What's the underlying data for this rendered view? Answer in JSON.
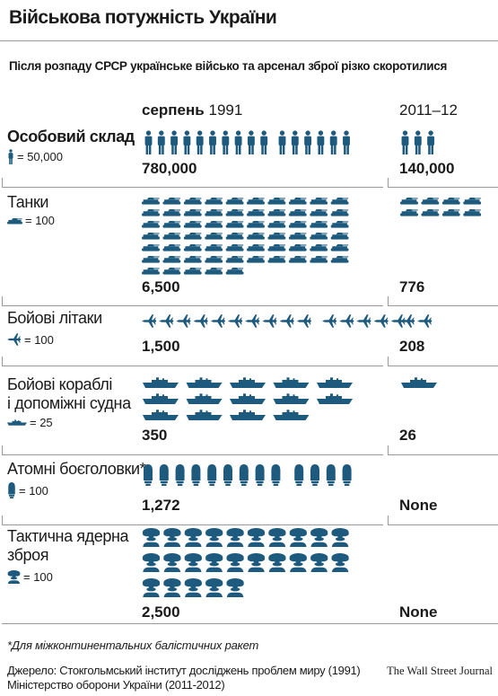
{
  "title": "Військова потужність України",
  "subtitle": "Після розпаду СРСР українське військо та арсенал зброї різко скоротилися",
  "columns": {
    "left_prefix": "серпень",
    "left_year": "1991",
    "right": "2011–12"
  },
  "colors": {
    "icon": "#1d5a7e",
    "rule": "#999999"
  },
  "chart_data": {
    "type": "pictogram",
    "categories": [
      {
        "name": "Особовий склад",
        "unit_icon": "soldier-icon",
        "unit_value": "= 50,000",
        "value_1991": "780,000",
        "value_2011": "140,000"
      },
      {
        "name": "Танки",
        "unit_icon": "tank-icon",
        "unit_value": "= 100",
        "value_1991": "6,500",
        "value_2011": "776"
      },
      {
        "name": "Бойові літаки",
        "unit_icon": "plane-icon",
        "unit_value": "= 100",
        "value_1991": "1,500",
        "value_2011": "208"
      },
      {
        "name": "Бойові кораблі і допоміжні судна",
        "name_line1": "Бойові кораблі",
        "name_line2": "і допоміжні судна",
        "unit_icon": "ship-icon",
        "unit_value": "= 25",
        "value_1991": "350",
        "value_2011": "26"
      },
      {
        "name": "Атомні боєголовки*",
        "unit_icon": "warhead-icon",
        "unit_value": "= 100",
        "value_1991": "1,272",
        "value_2011": "None"
      },
      {
        "name": "Тактична ядерна зброя",
        "name_line1": "Тактична ядерна",
        "name_line2": "зброя",
        "unit_icon": "mushroom-cloud-icon",
        "unit_value": "= 100",
        "value_1991": "2,500",
        "value_2011": "None"
      }
    ]
  },
  "footnote": "*Для міжконтинентальних балістичних ракет",
  "source_line1": "Джерело: Стокгольмський інститут досліджень проблем миру (1991)",
  "source_line2": "Міністерство оборони України (2011-2012)",
  "credit": "The Wall Street Journal"
}
